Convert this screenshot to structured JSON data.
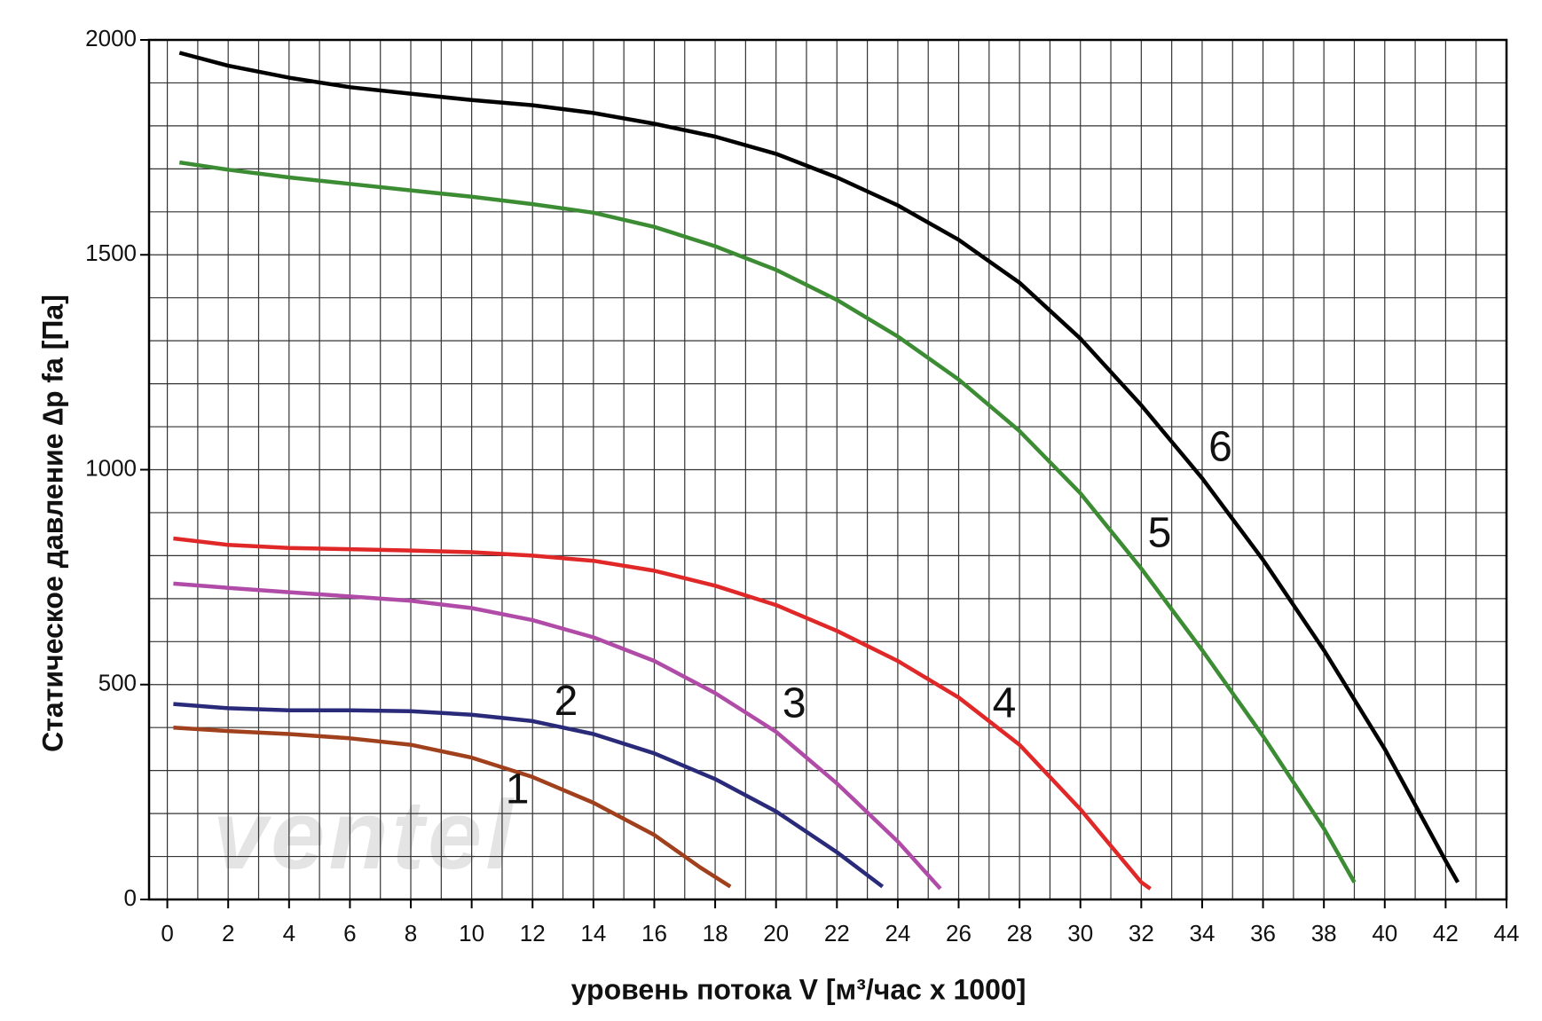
{
  "chart_data": {
    "type": "line",
    "xlabel": "уровень потока  V [м³/час x 1000]",
    "ylabel": "Статическое давление  ∆p fa [Па]",
    "watermark": "ventel",
    "xlim": [
      -0.6,
      44
    ],
    "ylim": [
      0,
      2000
    ],
    "xticks": [
      0,
      2,
      4,
      6,
      8,
      10,
      12,
      14,
      16,
      18,
      20,
      22,
      24,
      26,
      28,
      30,
      32,
      34,
      36,
      38,
      40,
      42,
      44
    ],
    "yticks": [
      0,
      500,
      1000,
      1500,
      2000
    ],
    "x_minor_ticks": [
      1,
      3,
      5,
      7,
      9,
      11,
      13,
      15,
      17,
      19,
      21,
      23,
      25,
      27,
      29,
      31,
      33,
      35,
      37,
      39,
      41,
      43
    ],
    "y_minor_ticks": [
      100,
      200,
      300,
      400,
      600,
      700,
      800,
      900,
      1100,
      1200,
      1300,
      1400,
      1600,
      1700,
      1800,
      1900
    ],
    "grid": true,
    "series": [
      {
        "name": "1",
        "color": "#a0401c",
        "x": [
          0.2,
          2,
          4,
          6,
          8,
          10,
          12,
          14,
          16,
          17.5,
          18.5
        ],
        "values": [
          400,
          392,
          385,
          375,
          360,
          330,
          285,
          225,
          150,
          75,
          30
        ]
      },
      {
        "name": "2",
        "color": "#2a2a7a",
        "x": [
          0.2,
          2,
          4,
          6,
          8,
          10,
          12,
          14,
          16,
          18,
          20,
          22,
          23.5
        ],
        "values": [
          455,
          445,
          440,
          440,
          438,
          430,
          415,
          385,
          340,
          280,
          205,
          110,
          30
        ]
      },
      {
        "name": "3",
        "color": "#b04ca8",
        "x": [
          0.2,
          2,
          4,
          6,
          8,
          10,
          12,
          14,
          16,
          18,
          20,
          22,
          24,
          25.4
        ],
        "values": [
          735,
          725,
          715,
          705,
          695,
          678,
          650,
          610,
          555,
          480,
          390,
          270,
          135,
          25
        ]
      },
      {
        "name": "4",
        "color": "#e02828",
        "x": [
          0.2,
          2,
          4,
          6,
          8,
          10,
          12,
          14,
          16,
          18,
          20,
          22,
          24,
          26,
          28,
          30,
          32,
          32.3
        ],
        "values": [
          840,
          825,
          818,
          815,
          812,
          808,
          800,
          788,
          765,
          730,
          685,
          625,
          555,
          470,
          360,
          210,
          40,
          25
        ]
      },
      {
        "name": "5",
        "color": "#3c8c34",
        "x": [
          0.4,
          2,
          4,
          6,
          8,
          10,
          12,
          14,
          16,
          18,
          20,
          22,
          24,
          26,
          28,
          30,
          32,
          34,
          36,
          38,
          39
        ],
        "values": [
          1715,
          1698,
          1680,
          1665,
          1650,
          1635,
          1618,
          1598,
          1565,
          1520,
          1465,
          1395,
          1310,
          1210,
          1090,
          945,
          770,
          580,
          380,
          165,
          40
        ]
      },
      {
        "name": "6",
        "color": "#000000",
        "x": [
          0.4,
          2,
          4,
          6,
          8,
          10,
          12,
          14,
          16,
          18,
          20,
          22,
          24,
          26,
          28,
          30,
          32,
          34,
          36,
          38,
          40,
          42,
          42.4
        ],
        "values": [
          1970,
          1940,
          1912,
          1890,
          1875,
          1860,
          1848,
          1830,
          1805,
          1775,
          1735,
          1680,
          1615,
          1535,
          1435,
          1305,
          1150,
          980,
          790,
          580,
          350,
          90,
          40
        ]
      }
    ]
  }
}
